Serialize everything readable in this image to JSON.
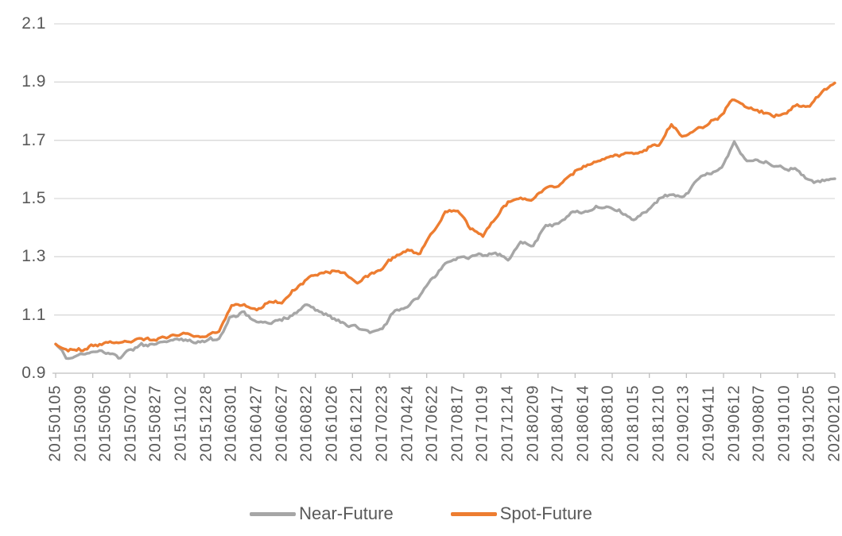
{
  "chart_data": {
    "type": "line",
    "title": "",
    "grid": {
      "horizontal": true,
      "vertical": false,
      "gridline_color": "#d9d9d9",
      "axis_color": "#bfbfbf"
    },
    "text_color": "#595959",
    "y_axis": {
      "min": 0.9,
      "max": 2.1,
      "tick_labels": [
        "2.1",
        "1.9",
        "1.7",
        "1.5",
        "1.3",
        "1.1",
        "0.9"
      ]
    },
    "x_axis": {
      "tick_labels": [
        "20150105",
        "20150309",
        "20150506",
        "20150702",
        "20150827",
        "20151102",
        "20151228",
        "20160301",
        "20160427",
        "20160627",
        "20160822",
        "20161026",
        "20161221",
        "20170223",
        "20170424",
        "20170622",
        "20170817",
        "20171019",
        "20171214",
        "20180209",
        "20180417",
        "20180614",
        "20180810",
        "20181015",
        "20181210",
        "20190213",
        "20190411",
        "20190612",
        "20190807",
        "20191010",
        "20191205",
        "20200210"
      ]
    },
    "samples_per_label_interval": 2,
    "series": [
      {
        "name": "Near-Future",
        "color": "#a6a6a6",
        "values": [
          1.0,
          0.95,
          0.965,
          0.973,
          0.97,
          0.953,
          0.982,
          0.996,
          1.002,
          1.012,
          1.018,
          1.002,
          1.01,
          1.022,
          1.097,
          1.106,
          1.073,
          1.07,
          1.085,
          1.105,
          1.137,
          1.11,
          1.092,
          1.07,
          1.056,
          1.044,
          1.05,
          1.118,
          1.128,
          1.168,
          1.228,
          1.28,
          1.297,
          1.3,
          1.308,
          1.315,
          1.292,
          1.348,
          1.338,
          1.408,
          1.41,
          1.45,
          1.452,
          1.472,
          1.47,
          1.452,
          1.428,
          1.455,
          1.5,
          1.512,
          1.503,
          1.565,
          1.588,
          1.605,
          1.692,
          1.63,
          1.628,
          1.618,
          1.608,
          1.598,
          1.56,
          1.565,
          1.568
        ]
      },
      {
        "name": "Spot-Future",
        "color": "#ed7d31",
        "values": [
          1.0,
          0.975,
          0.985,
          0.995,
          1.002,
          1.006,
          1.008,
          1.018,
          1.015,
          1.024,
          1.035,
          1.03,
          1.028,
          1.042,
          1.13,
          1.135,
          1.115,
          1.148,
          1.14,
          1.185,
          1.225,
          1.24,
          1.25,
          1.242,
          1.21,
          1.235,
          1.262,
          1.3,
          1.322,
          1.312,
          1.38,
          1.452,
          1.458,
          1.395,
          1.374,
          1.43,
          1.49,
          1.498,
          1.497,
          1.535,
          1.546,
          1.585,
          1.608,
          1.625,
          1.641,
          1.652,
          1.655,
          1.668,
          1.688,
          1.748,
          1.712,
          1.74,
          1.756,
          1.788,
          1.843,
          1.815,
          1.8,
          1.786,
          1.79,
          1.82,
          1.812,
          1.868,
          1.897
        ]
      }
    ],
    "legend": {
      "position": "bottom",
      "entries": [
        "Near-Future",
        "Spot-Future"
      ]
    }
  }
}
